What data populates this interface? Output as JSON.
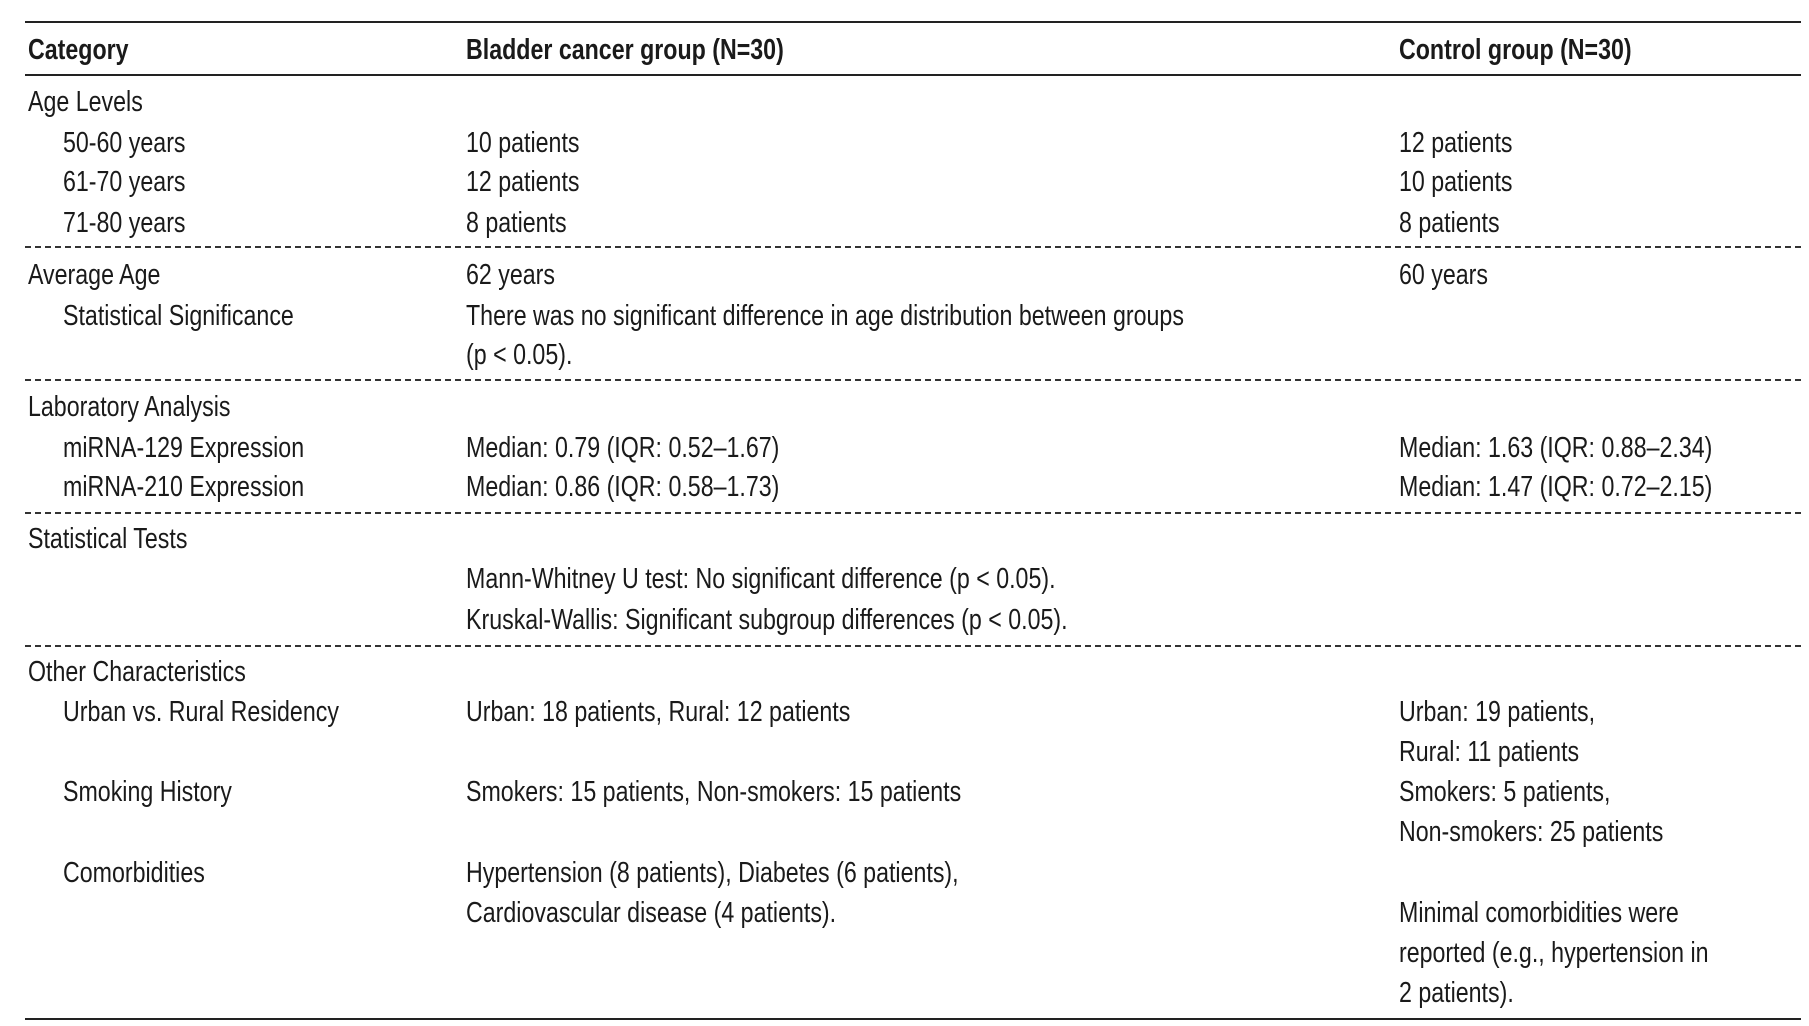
{
  "header": {
    "category": "Category",
    "bladder": "Bladder cancer group (N=30)",
    "control": "Control group (N=30)"
  },
  "age_levels": {
    "label": "Age Levels",
    "rows": [
      {
        "range": "50-60 years",
        "bladder": "10 patients",
        "control": "12 patients"
      },
      {
        "range": "61-70 years",
        "bladder": "12 patients",
        "control": "10 patients"
      },
      {
        "range": "71-80 years",
        "bladder": "8 patients",
        "control": "8 patients"
      }
    ]
  },
  "average_age": {
    "label": "Average Age",
    "bladder": "62 years",
    "control": "60 years",
    "significance_label": "Statistical Significance",
    "significance_lines": [
      "There was no significant difference in age distribution between groups",
      "(p < 0.05)."
    ]
  },
  "lab": {
    "label": "Laboratory Analysis",
    "rows": [
      {
        "name": "miRNA-129 Expression",
        "bladder": "Median: 0.79 (IQR: 0.52–1.67)",
        "control": "Median: 1.63 (IQR: 0.88–2.34)"
      },
      {
        "name": "miRNA-210 Expression",
        "bladder": "Median: 0.86 (IQR: 0.58–1.73)",
        "control": "Median: 1.47 (IQR: 0.72–2.15)"
      }
    ]
  },
  "tests": {
    "label": "Statistical Tests",
    "lines": [
      "Mann-Whitney U test: No significant difference (p < 0.05).",
      "Kruskal-Wallis: Significant subgroup differences (p < 0.05)."
    ]
  },
  "other": {
    "label": "Other Characteristics",
    "residency": {
      "label": "Urban vs. Rural Residency",
      "bladder": "Urban: 18 patients, Rural: 12 patients",
      "control_lines": [
        "Urban: 19 patients,",
        "Rural: 11 patients"
      ]
    },
    "smoking": {
      "label": "Smoking History",
      "bladder": "Smokers: 15 patients, Non-smokers: 15 patients",
      "control_lines": [
        "Smokers: 5 patients,",
        "Non-smokers: 25 patients"
      ]
    },
    "comorbidities": {
      "label": "Comorbidities",
      "bladder_lines": [
        "Hypertension (8 patients), Diabetes (6 patients),",
        "Cardiovascular disease (4 patients)."
      ],
      "control_lines": [
        "Minimal comorbidities were",
        "reported (e.g., hypertension in",
        "2 patients)."
      ]
    }
  }
}
